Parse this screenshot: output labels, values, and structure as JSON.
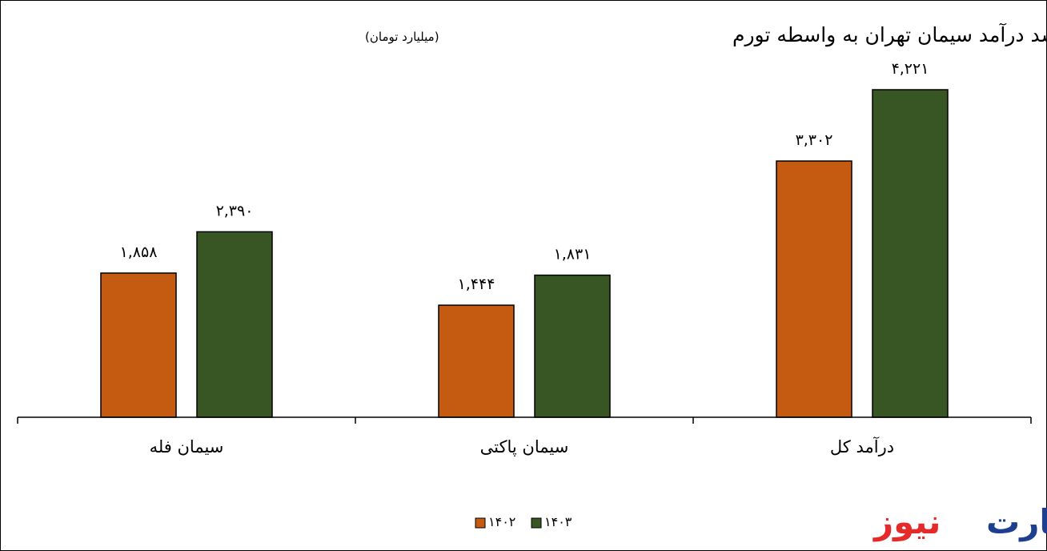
{
  "chart_data": {
    "type": "bar",
    "title": "رشد درآمد سیمان تهران به واسطه تورم",
    "subtitle": "(میلیارد تومان)",
    "categories": [
      "سیمان فله",
      "سیمان پاکتی",
      "درآمد کل"
    ],
    "series": [
      {
        "name": "۱۴۰۲",
        "color": "#c55a11",
        "values": [
          1858,
          1444,
          3302
        ],
        "labels": [
          "۱,۸۵۸",
          "۱,۴۴۴",
          "۳,۳۰۲"
        ]
      },
      {
        "name": "۱۴۰۳",
        "color": "#375623",
        "values": [
          2390,
          1831,
          4221
        ],
        "labels": [
          "۲,۳۹۰",
          "۱,۸۳۱",
          "۴,۲۲۱"
        ]
      }
    ],
    "ylim": [
      0,
      4300
    ],
    "grid": false,
    "legend": "bottom-center"
  },
  "brand": {
    "logo_part1": "تجارت",
    "logo_part2": "نیوز",
    "color1": "#1e3f8f",
    "color2": "#e52a2a"
  }
}
